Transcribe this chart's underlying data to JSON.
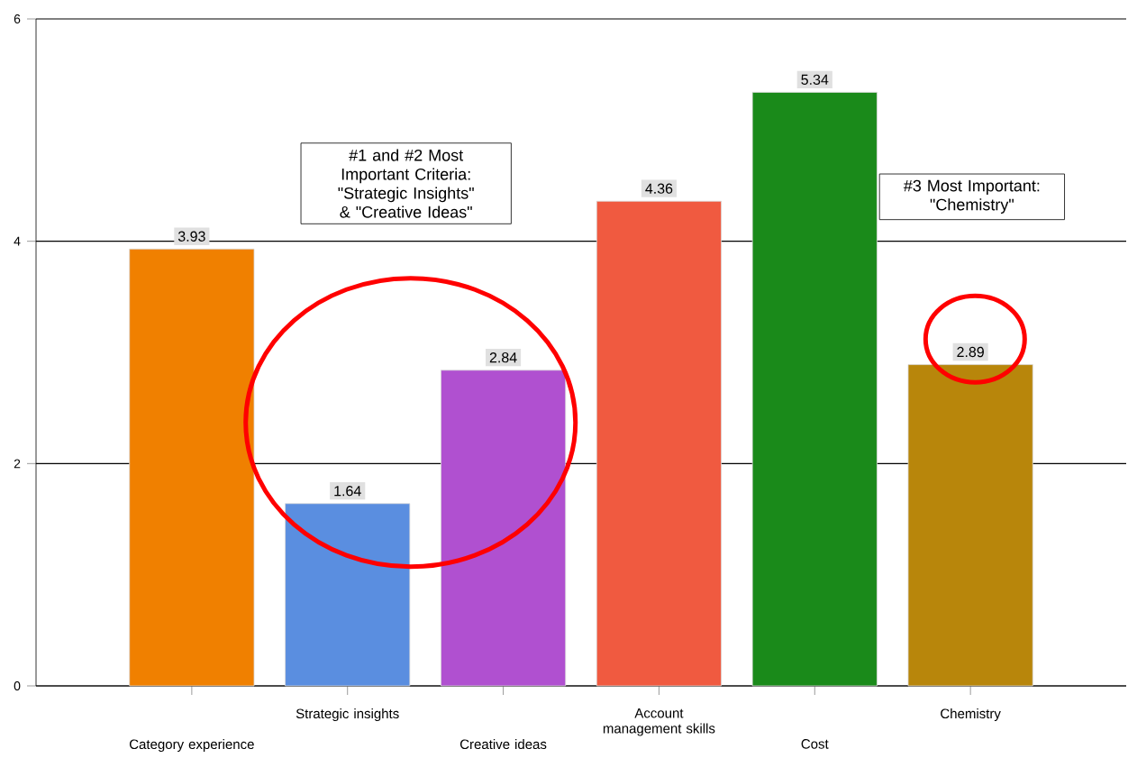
{
  "chart_data": {
    "type": "bar",
    "categories": [
      "Category experience",
      "Strategic insights",
      "Creative ideas",
      "Account management skills",
      "Cost",
      "Chemistry"
    ],
    "values": [
      3.93,
      1.64,
      2.84,
      4.36,
      5.34,
      2.89
    ],
    "colors": [
      "#f08000",
      "#5a8ee0",
      "#b050d0",
      "#f05a40",
      "#1a8a1a",
      "#b8860b"
    ],
    "ylim": [
      0,
      6
    ],
    "yticks": [
      0,
      2,
      4,
      6
    ],
    "grid": "y",
    "data_labels": true,
    "annotations": [
      "#1 and #2 Most Important Criteria: \"Strategic Insights\" & \"Creative Ideas\"",
      "#3 Most Important: \"Chemistry\""
    ]
  }
}
